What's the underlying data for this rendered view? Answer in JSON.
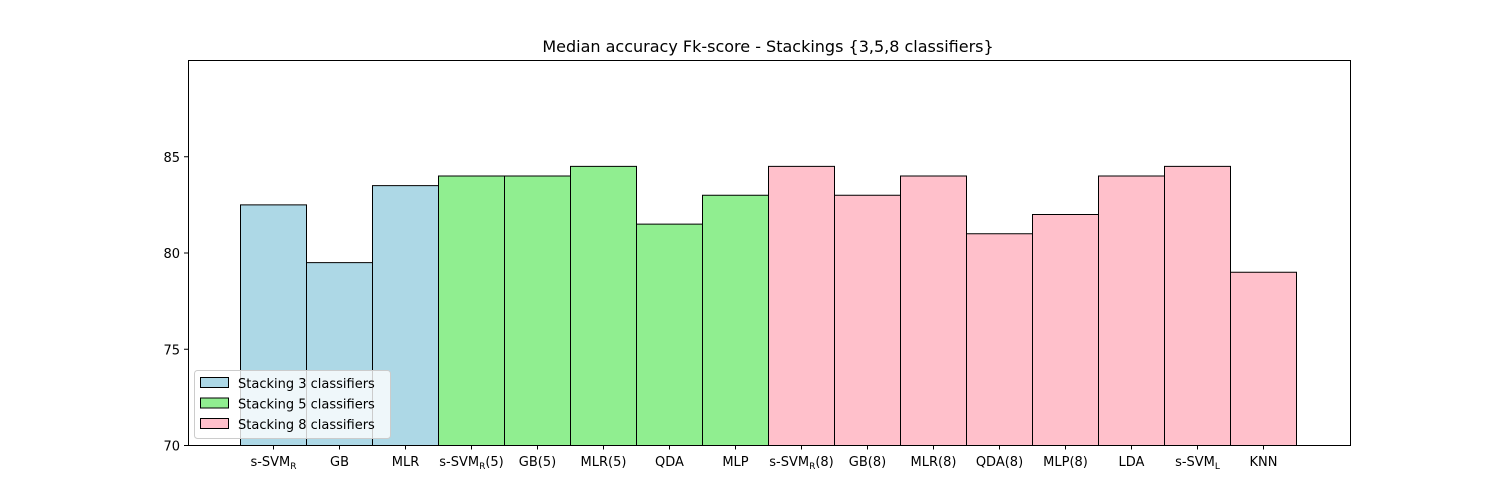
{
  "chart_data": {
    "type": "bar",
    "title": "Median accuracy Fk-score - Stackings {3,5,8 classifiers}",
    "xlabel": "",
    "ylabel": "",
    "ylim": [
      70,
      90
    ],
    "yticks": [
      70,
      75,
      80,
      85
    ],
    "categories": [
      {
        "base": "s-SVM",
        "sub": "R",
        "suffix": ""
      },
      {
        "base": "GB",
        "sub": "",
        "suffix": ""
      },
      {
        "base": "MLR",
        "sub": "",
        "suffix": ""
      },
      {
        "base": "s-SVM",
        "sub": "R",
        "suffix": "(5)"
      },
      {
        "base": "GB(5)",
        "sub": "",
        "suffix": ""
      },
      {
        "base": "MLR(5)",
        "sub": "",
        "suffix": ""
      },
      {
        "base": "QDA",
        "sub": "",
        "suffix": ""
      },
      {
        "base": "MLP",
        "sub": "",
        "suffix": ""
      },
      {
        "base": "s-SVM",
        "sub": "R",
        "suffix": "(8)"
      },
      {
        "base": "GB(8)",
        "sub": "",
        "suffix": ""
      },
      {
        "base": "MLR(8)",
        "sub": "",
        "suffix": ""
      },
      {
        "base": "QDA(8)",
        "sub": "",
        "suffix": ""
      },
      {
        "base": "MLP(8)",
        "sub": "",
        "suffix": ""
      },
      {
        "base": "LDA",
        "sub": "",
        "suffix": ""
      },
      {
        "base": "s-SVM",
        "sub": "L",
        "suffix": ""
      },
      {
        "base": "KNN",
        "sub": "",
        "suffix": ""
      }
    ],
    "values": [
      82.5,
      79.5,
      83.5,
      84,
      84,
      84.5,
      81.5,
      83,
      84.5,
      83,
      84,
      81,
      82,
      84,
      84.5,
      79
    ],
    "groups": [
      0,
      0,
      0,
      1,
      1,
      1,
      1,
      1,
      2,
      2,
      2,
      2,
      2,
      2,
      2,
      2
    ],
    "series": [
      {
        "name": "Stacking 3 classifiers",
        "color": "#add8e6"
      },
      {
        "name": "Stacking 5 classifiers",
        "color": "#90ee90"
      },
      {
        "name": "Stacking 8 classifiers",
        "color": "#ffc0cb"
      }
    ],
    "grid": false,
    "legend_position": "lower-left"
  }
}
